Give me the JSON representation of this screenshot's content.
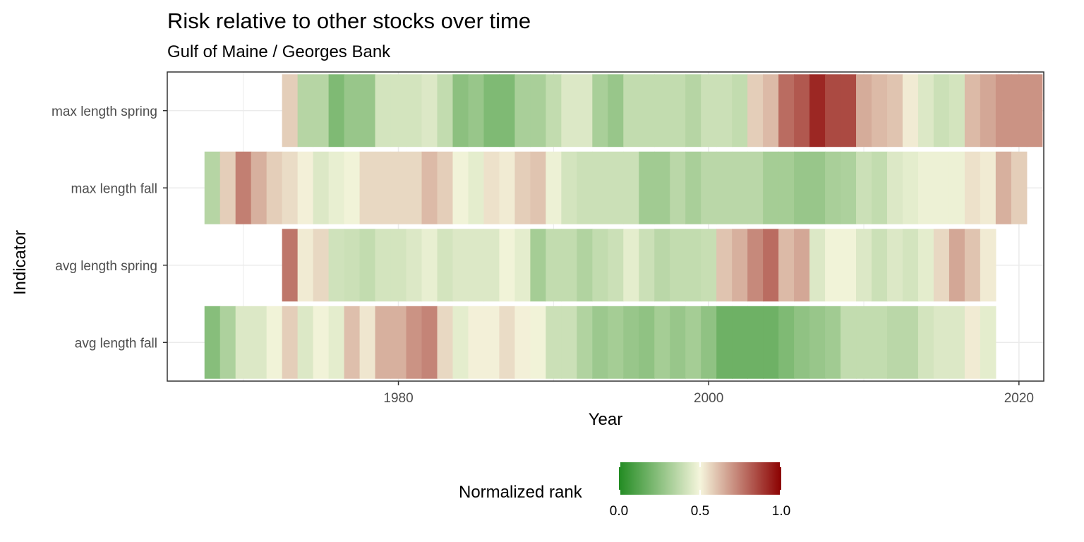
{
  "title": "Risk relative to other stocks over time",
  "subtitle": "Gulf of Maine / Georges Bank",
  "chart_data": {
    "type": "heatmap",
    "title": "Risk relative to other stocks over time",
    "subtitle": "Gulf of Maine / Georges Bank",
    "xlabel": "Year",
    "ylabel": "Indicator",
    "xlim": [
      1965.1,
      2021.6
    ],
    "x_ticks": [
      1980,
      2000,
      2020
    ],
    "grid": true,
    "legend": {
      "title": "Normalized rank",
      "position": "bottom",
      "low_color": "#228b22",
      "mid_color": "#f5f5dc",
      "high_color": "#8b0000",
      "ticks": [
        "0.0",
        "0.5",
        "1.0"
      ],
      "limits": [
        0,
        1
      ]
    },
    "y_categories": [
      "max length spring",
      "max length fall",
      "avg length spring",
      "avg length fall"
    ],
    "series": [
      {
        "name": "max length spring",
        "start_year": 1973,
        "values": [
          0.58,
          0.35,
          0.35,
          0.22,
          0.28,
          0.28,
          0.42,
          0.42,
          0.42,
          0.44,
          0.38,
          0.25,
          0.28,
          0.22,
          0.22,
          0.32,
          0.32,
          0.38,
          0.44,
          0.44,
          0.32,
          0.28,
          0.38,
          0.38,
          0.38,
          0.38,
          0.35,
          0.4,
          0.4,
          0.38,
          0.58,
          0.62,
          0.78,
          0.82,
          0.92,
          0.85,
          0.85,
          0.65,
          0.62,
          0.6,
          0.52,
          0.44,
          0.4,
          0.42,
          0.62,
          0.66,
          0.7,
          0.7,
          0.7
        ]
      },
      {
        "name": "max length fall",
        "start_year": 1968,
        "values": [
          0.35,
          0.58,
          0.74,
          0.64,
          0.58,
          0.55,
          0.51,
          0.44,
          0.47,
          0.49,
          0.56,
          0.56,
          0.56,
          0.56,
          0.62,
          0.58,
          0.49,
          0.46,
          0.54,
          0.52,
          0.58,
          0.6,
          0.48,
          0.42,
          0.4,
          0.4,
          0.4,
          0.4,
          0.3,
          0.3,
          0.36,
          0.32,
          0.36,
          0.36,
          0.36,
          0.36,
          0.31,
          0.31,
          0.28,
          0.28,
          0.32,
          0.33,
          0.4,
          0.38,
          0.44,
          0.46,
          0.48,
          0.48,
          0.48,
          0.54,
          0.52,
          0.64,
          0.58
        ]
      },
      {
        "name": "avg length spring",
        "start_year": 1973,
        "values": [
          0.76,
          0.52,
          0.56,
          0.41,
          0.4,
          0.38,
          0.42,
          0.42,
          0.44,
          0.47,
          0.42,
          0.44,
          0.44,
          0.44,
          0.49,
          0.46,
          0.31,
          0.38,
          0.38,
          0.34,
          0.38,
          0.4,
          0.46,
          0.4,
          0.36,
          0.38,
          0.38,
          0.39,
          0.6,
          0.64,
          0.72,
          0.78,
          0.62,
          0.66,
          0.44,
          0.49,
          0.49,
          0.44,
          0.4,
          0.44,
          0.42,
          0.46,
          0.56,
          0.66,
          0.6,
          0.52
        ]
      },
      {
        "name": "avg length fall",
        "start_year": 1968,
        "values": [
          0.24,
          0.33,
          0.44,
          0.44,
          0.49,
          0.58,
          0.44,
          0.49,
          0.46,
          0.61,
          0.53,
          0.64,
          0.64,
          0.7,
          0.73,
          0.56,
          0.46,
          0.51,
          0.51,
          0.55,
          0.51,
          0.49,
          0.4,
          0.4,
          0.34,
          0.29,
          0.31,
          0.28,
          0.26,
          0.31,
          0.28,
          0.31,
          0.26,
          0.18,
          0.18,
          0.18,
          0.18,
          0.22,
          0.26,
          0.28,
          0.3,
          0.38,
          0.38,
          0.38,
          0.36,
          0.36,
          0.42,
          0.44,
          0.44,
          0.52,
          0.46
        ]
      }
    ]
  }
}
